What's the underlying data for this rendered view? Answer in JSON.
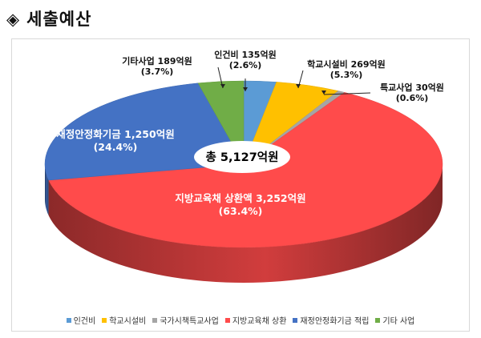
{
  "page": {
    "title": "세출예산",
    "diamond": "◈"
  },
  "total_label": "총 5,127억원",
  "chart_data": {
    "type": "pie",
    "unit": "억원",
    "slices": [
      {
        "name": "인건비",
        "value": 135,
        "percent": 2.6,
        "color": "#5b9bd5",
        "label": "인건비 135억원",
        "pct_label": "(2.6%)"
      },
      {
        "name": "학교시설비",
        "value": 269,
        "percent": 5.3,
        "color": "#ffc000",
        "label": "학교시설비 269억원",
        "pct_label": "(5.3%)"
      },
      {
        "name": "특교사업",
        "value": 30,
        "percent": 0.6,
        "color": "#a5a5a5",
        "label": "특교사업 30억원",
        "pct_label": "(0.6%)"
      },
      {
        "name": "지방교육채 상환액",
        "value": 3252,
        "percent": 63.4,
        "color": "#ff4b4b",
        "label": "지방교육채 상환액 3,252억원",
        "pct_label": "(63.4%)"
      },
      {
        "name": "재정안정화기금",
        "value": 1250,
        "percent": 24.4,
        "color": "#4472c4",
        "label": "재정안정화기금 1,250억원",
        "pct_label": "(24.4%)"
      },
      {
        "name": "기타사업",
        "value": 189,
        "percent": 3.7,
        "color": "#70ad47",
        "label": "기타사업 189억원",
        "pct_label": "(3.7%)"
      }
    ],
    "legend": [
      {
        "label": "인건비",
        "color": "#5b9bd5"
      },
      {
        "label": "학교시설비",
        "color": "#ffc000"
      },
      {
        "label": "국가시책특교사업",
        "color": "#a5a5a5"
      },
      {
        "label": "지방교육채 상환",
        "color": "#ff4b4b"
      },
      {
        "label": "재정안정화기금 적립",
        "color": "#4472c4"
      },
      {
        "label": "기타 사업",
        "color": "#70ad47"
      }
    ],
    "legend_position": "bottom"
  }
}
